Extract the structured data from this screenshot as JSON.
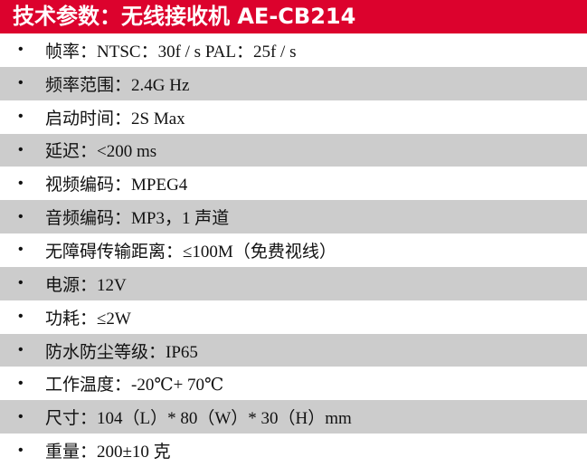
{
  "title": "技术参数：无线接收机 AE-CB214",
  "colors": {
    "header": "#DC022D",
    "stripe": "#CCCCCC"
  },
  "specs": [
    "帧率：NTSC：30f / s PAL：25f / s",
    "频率范围：2.4G Hz",
    "启动时间：2S Max",
    "延迟：<200 ms",
    "视频编码：MPEG4",
    "音频编码：MP3，1 声道",
    "无障碍传输距离：≤100M（免费视线）",
    "电源：12V",
    "功耗：≤2W",
    "防水防尘等级：IP65",
    "工作温度：-20℃+ 70℃",
    "尺寸：104（L）* 80（W）* 30（H）mm",
    "重量：200±10 克"
  ],
  "bullet": "•"
}
